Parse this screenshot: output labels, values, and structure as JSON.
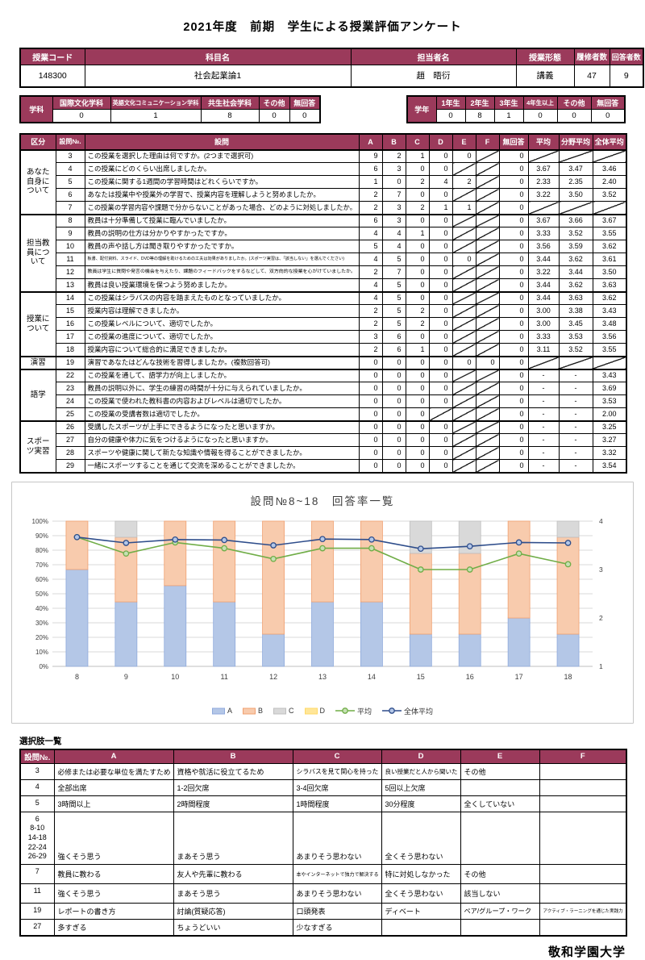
{
  "title": "2021年度　前期　学生による授業評価アンケート",
  "course_table": {
    "headers": [
      "授業コード",
      "科目名",
      "担当者名",
      "授業形態",
      "履修者数",
      "回答者数"
    ],
    "values": [
      "148300",
      "社会起業論1",
      "趙　晤衍",
      "講義",
      "47",
      "9"
    ]
  },
  "department_table": {
    "label": "学科",
    "headers": [
      "国際文化学科",
      "英語文化コミュニケーション学科",
      "共生社会学科",
      "その他",
      "無回答"
    ],
    "values": [
      "0",
      "1",
      "8",
      "0",
      "0"
    ]
  },
  "grade_table": {
    "label": "学年",
    "headers": [
      "1年生",
      "2年生",
      "3年生",
      "4年生以上",
      "その他",
      "無回答"
    ],
    "values": [
      "0",
      "8",
      "1",
      "0",
      "0",
      "0"
    ]
  },
  "question_table": {
    "headers": [
      "区分",
      "設問№.",
      "設問",
      "A",
      "B",
      "C",
      "D",
      "E",
      "F",
      "無回答",
      "平均",
      "分野平均",
      "全体平均"
    ],
    "sections": [
      {
        "label": "あなた自身について",
        "rows": [
          {
            "no": "3",
            "text": "この授業を選択した理由は何ですか。(2つまで選択可)",
            "cells": [
              "9",
              "2",
              "1",
              "0",
              "0",
              "/",
              "0",
              "/",
              "/",
              "/"
            ]
          },
          {
            "no": "4",
            "text": "この授業にどのくらい出席しましたか。",
            "cells": [
              "6",
              "3",
              "0",
              "0",
              "/",
              "/",
              "0",
              "3.67",
              "3.47",
              "3.46"
            ]
          },
          {
            "no": "5",
            "text": "この授業に関する1週間の学習時間はどれくらいですか。",
            "cells": [
              "1",
              "0",
              "2",
              "4",
              "2",
              "/",
              "0",
              "2.33",
              "2.35",
              "2.40"
            ]
          },
          {
            "no": "6",
            "text": "あなたは授業中や授業外の学習で、授業内容を理解しようと努めましたか。",
            "cells": [
              "2",
              "7",
              "0",
              "0",
              "/",
              "/",
              "0",
              "3.22",
              "3.50",
              "3.52"
            ]
          },
          {
            "no": "7",
            "text": "この授業の学習内容や課題で分からないことがあった場合、どのように対処しましたか。",
            "cells": [
              "2",
              "3",
              "2",
              "1",
              "1",
              "/",
              "0",
              "/",
              "/",
              "/"
            ]
          }
        ]
      },
      {
        "label": "担当教員について",
        "rows": [
          {
            "no": "8",
            "text": "教員は十分準備して授業に臨んでいましたか。",
            "cells": [
              "6",
              "3",
              "0",
              "0",
              "/",
              "/",
              "0",
              "3.67",
              "3.66",
              "3.67"
            ]
          },
          {
            "no": "9",
            "text": "教員の説明の仕方は分かりやすかったですか。",
            "cells": [
              "4",
              "4",
              "1",
              "0",
              "/",
              "/",
              "0",
              "3.33",
              "3.52",
              "3.55"
            ]
          },
          {
            "no": "10",
            "text": "教員の声や話し方は聞き取りやすかったですか。",
            "cells": [
              "5",
              "4",
              "0",
              "0",
              "/",
              "/",
              "0",
              "3.56",
              "3.59",
              "3.62"
            ]
          },
          {
            "no": "11",
            "text": "板書、配付資料、スライド、DVD等の理解を助けるための工夫は効果がありましたか。(スポーツ実習は、「該当しない」を選んでください)",
            "cells": [
              "4",
              "5",
              "0",
              "0",
              "0",
              "/",
              "0",
              "3.44",
              "3.62",
              "3.61"
            ]
          },
          {
            "no": "12",
            "text": "教員は学生に質問や発言の機会を与えたり、課題のフィードバックをするなどして、双方向的な授業を心がけていましたか。",
            "cells": [
              "2",
              "7",
              "0",
              "0",
              "/",
              "/",
              "0",
              "3.22",
              "3.44",
              "3.50"
            ]
          },
          {
            "no": "13",
            "text": "教員は良い授業環境を保つよう努めましたか。",
            "cells": [
              "4",
              "5",
              "0",
              "0",
              "/",
              "/",
              "0",
              "3.44",
              "3.62",
              "3.63"
            ]
          }
        ]
      },
      {
        "label": "授業について",
        "rows": [
          {
            "no": "14",
            "text": "この授業はシラバスの内容を踏まえたものとなっていましたか。",
            "cells": [
              "4",
              "5",
              "0",
              "0",
              "/",
              "/",
              "0",
              "3.44",
              "3.63",
              "3.62"
            ]
          },
          {
            "no": "15",
            "text": "授業内容は理解できましたか。",
            "cells": [
              "2",
              "5",
              "2",
              "0",
              "/",
              "/",
              "0",
              "3.00",
              "3.38",
              "3.43"
            ]
          },
          {
            "no": "16",
            "text": "この授業レベルについて、適切でしたか。",
            "cells": [
              "2",
              "5",
              "2",
              "0",
              "/",
              "/",
              "0",
              "3.00",
              "3.45",
              "3.48"
            ]
          },
          {
            "no": "17",
            "text": "この授業の進度について、適切でしたか。",
            "cells": [
              "3",
              "6",
              "0",
              "0",
              "/",
              "/",
              "0",
              "3.33",
              "3.53",
              "3.56"
            ]
          },
          {
            "no": "18",
            "text": "授業内容について総合的に満足できましたか。",
            "cells": [
              "2",
              "6",
              "1",
              "0",
              "/",
              "/",
              "0",
              "3.11",
              "3.52",
              "3.55"
            ]
          }
        ]
      },
      {
        "label": "演習",
        "rows": [
          {
            "no": "19",
            "text": "演習であなたはどんな技術を習得しましたか。(複数回答可)",
            "cells": [
              "0",
              "0",
              "0",
              "0",
              "0",
              "0",
              "0",
              "/",
              "/",
              "/"
            ]
          }
        ]
      },
      {
        "label": "語学",
        "rows": [
          {
            "no": "22",
            "text": "この授業を通して、語学力が向上しましたか。",
            "cells": [
              "0",
              "0",
              "0",
              "0",
              "/",
              "/",
              "0",
              "-",
              "-",
              "3.43"
            ]
          },
          {
            "no": "23",
            "text": "教員の説明以外に、学生の練習の時間が十分に与えられていましたか。",
            "cells": [
              "0",
              "0",
              "0",
              "0",
              "/",
              "/",
              "0",
              "-",
              "-",
              "3.69"
            ]
          },
          {
            "no": "24",
            "text": "この授業で使われた教科書の内容およびレベルは適切でしたか。",
            "cells": [
              "0",
              "0",
              "0",
              "0",
              "/",
              "/",
              "0",
              "-",
              "-",
              "3.53"
            ]
          },
          {
            "no": "25",
            "text": "この授業の受講者数は適切でしたか。",
            "cells": [
              "0",
              "0",
              "0",
              "/",
              "/",
              "/",
              "0",
              "-",
              "-",
              "2.00"
            ]
          }
        ]
      },
      {
        "label": "スポーツ実習",
        "rows": [
          {
            "no": "26",
            "text": "受講したスポーツが上手にできるようになったと思いますか。",
            "cells": [
              "0",
              "0",
              "0",
              "0",
              "/",
              "/",
              "0",
              "-",
              "-",
              "3.25"
            ]
          },
          {
            "no": "27",
            "text": "自分の健康や体力に気をつけるようになったと思いますか。",
            "cells": [
              "0",
              "0",
              "0",
              "0",
              "/",
              "/",
              "0",
              "-",
              "-",
              "3.27"
            ]
          },
          {
            "no": "28",
            "text": "スポーツや健康に関して新たな知識や情報を得ることができましたか。",
            "cells": [
              "0",
              "0",
              "0",
              "0",
              "/",
              "/",
              "0",
              "-",
              "-",
              "3.32"
            ]
          },
          {
            "no": "29",
            "text": "一緒にスポーツすることを通じて交流を深めることができましたか。",
            "cells": [
              "0",
              "0",
              "0",
              "0",
              "/",
              "/",
              "0",
              "-",
              "-",
              "3.54"
            ]
          }
        ]
      }
    ]
  },
  "chart_data": {
    "type": "bar",
    "subtype": "stacked-percent-with-lines",
    "title": "設問№8~18　回答率一覧",
    "categories": [
      "8",
      "9",
      "10",
      "11",
      "12",
      "13",
      "14",
      "15",
      "16",
      "17",
      "18"
    ],
    "stack_series": [
      {
        "name": "A",
        "color": "#B4C7E7",
        "border": "#8FAADC",
        "values": [
          66.7,
          44.4,
          55.6,
          44.4,
          22.2,
          44.4,
          44.4,
          22.2,
          22.2,
          33.3,
          22.2
        ]
      },
      {
        "name": "B",
        "color": "#F8CBAD",
        "border": "#F0A070",
        "values": [
          33.3,
          44.5,
          44.4,
          55.6,
          77.8,
          55.6,
          55.6,
          55.6,
          55.6,
          66.7,
          66.7
        ]
      },
      {
        "name": "C",
        "color": "#D9D9D9",
        "border": "#BFBFBF",
        "values": [
          0,
          11.1,
          0,
          0,
          0,
          0,
          0,
          22.2,
          22.2,
          0,
          11.1
        ]
      },
      {
        "name": "D",
        "color": "#FFE699",
        "border": "#FFD966",
        "values": [
          0,
          0,
          0,
          0,
          0,
          0,
          0,
          0,
          0,
          0,
          0
        ]
      }
    ],
    "line_series": [
      {
        "name": "平均",
        "color": "#70AD47",
        "marker_fill": "#C6E0B4",
        "values": [
          3.67,
          3.33,
          3.56,
          3.44,
          3.22,
          3.44,
          3.44,
          3.0,
          3.0,
          3.33,
          3.11
        ]
      },
      {
        "name": "全体平均",
        "color": "#2E4D8B",
        "marker_fill": "#B4C7E7",
        "values": [
          3.67,
          3.55,
          3.62,
          3.61,
          3.5,
          3.63,
          3.62,
          3.43,
          3.48,
          3.56,
          3.55
        ]
      }
    ],
    "left_axis": {
      "min": 0,
      "max": 100,
      "tick_step": 10,
      "ticks": [
        "0%",
        "10%",
        "20%",
        "30%",
        "40%",
        "50%",
        "60%",
        "70%",
        "80%",
        "90%",
        "100%"
      ]
    },
    "right_axis": {
      "min": 1,
      "max": 4,
      "ticks": [
        "1",
        "2",
        "3",
        "4"
      ]
    },
    "grid": true,
    "legend_position": "bottom"
  },
  "choices_table": {
    "title": "選択肢一覧",
    "headers": [
      "設問№.",
      "A",
      "B",
      "C",
      "D",
      "E",
      "F"
    ],
    "rows": [
      {
        "no": "3",
        "cells": [
          "必修または必要な単位を満たすため",
          "資格や就活に役立てるため",
          "シラバスを見て関心を持った",
          "良い授業だと人から聞いた",
          "その他",
          ""
        ]
      },
      {
        "no": "4",
        "cells": [
          "全部出席",
          "1-2回欠席",
          "3-4回欠席",
          "5回以上欠席",
          "",
          ""
        ]
      },
      {
        "no": "5",
        "cells": [
          "3時間以上",
          "2時間程度",
          "1時間程度",
          "30分程度",
          "全くしていない",
          ""
        ]
      },
      {
        "no": "6\n8-10\n14-18\n22-24\n26-29",
        "cells": [
          "強くそう思う",
          "まあそう思う",
          "あまりそう思わない",
          "全くそう思わない",
          "",
          ""
        ]
      },
      {
        "no": "7",
        "cells": [
          "教員に教わる",
          "友人や先輩に教わる",
          "本やインターネットで独力で解決する",
          "特に対処しなかった",
          "その他",
          ""
        ]
      },
      {
        "no": "11",
        "cells": [
          "強くそう思う",
          "まあそう思う",
          "あまりそう思わない",
          "全くそう思わない",
          "該当しない",
          ""
        ]
      },
      {
        "no": "19",
        "cells": [
          "レポートの書き方",
          "討論(質疑応答)",
          "口頭発表",
          "ディベート",
          "ペア/グループ・ワーク",
          "アクティブ・ラーニングを通じた実践力"
        ]
      },
      {
        "no": "27",
        "cells": [
          "多すぎる",
          "ちょうどいい",
          "少なすぎる",
          "",
          "",
          ""
        ]
      }
    ]
  },
  "footer": "敬和学園大学",
  "colors": {
    "header_bg": "#9B3A5B",
    "header_text": "#FFFFFF"
  }
}
